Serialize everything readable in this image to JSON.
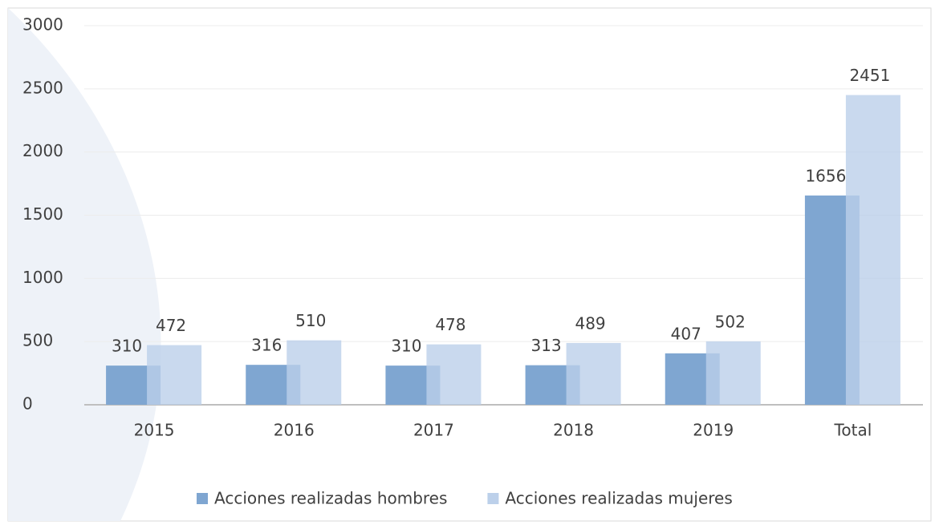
{
  "chart_data": {
    "type": "bar",
    "categories": [
      "2015",
      "2016",
      "2017",
      "2018",
      "2019",
      "Total"
    ],
    "series": [
      {
        "name": "Acciones realizadas hombres",
        "color": "#7fa6d1",
        "values": [
          310,
          316,
          310,
          313,
          407,
          1656
        ]
      },
      {
        "name": "Acciones realizadas mujeres",
        "color": "#bcd0ea",
        "values": [
          472,
          510,
          478,
          489,
          502,
          2451
        ]
      }
    ],
    "ylim": [
      0,
      3000
    ],
    "yticks": [
      0,
      500,
      1000,
      1500,
      2000,
      2500,
      3000
    ],
    "grid": true,
    "legend": "bottom"
  }
}
